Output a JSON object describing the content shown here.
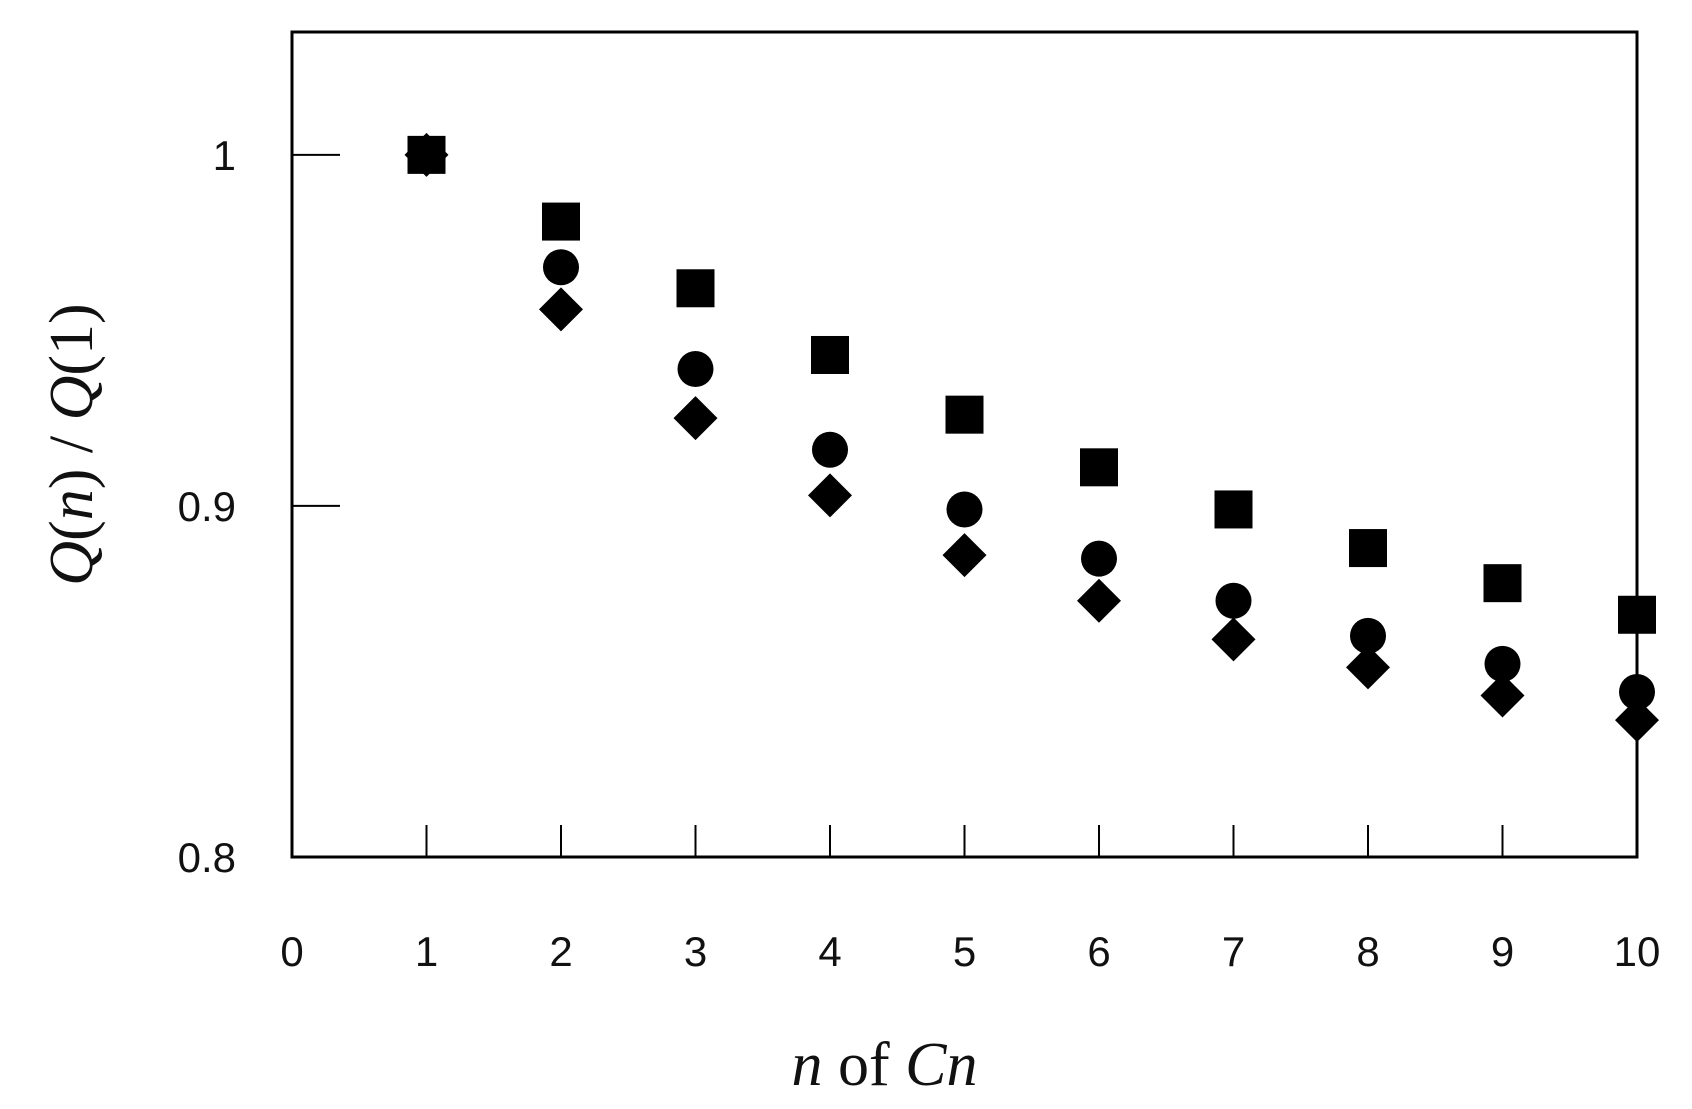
{
  "chart_data": {
    "type": "scatter",
    "x_axis": {
      "label_parts": [
        {
          "text": "n",
          "italic": true
        },
        {
          "text": " of ",
          "italic": false
        },
        {
          "text": "Cn",
          "italic": true
        }
      ],
      "range": [
        0,
        10
      ],
      "ticks": [
        0,
        1,
        2,
        3,
        4,
        5,
        6,
        7,
        8,
        9,
        10
      ],
      "tick_labels": [
        "0",
        "1",
        "2",
        "3",
        "4",
        "5",
        "6",
        "7",
        "8",
        "9",
        "10"
      ]
    },
    "y_axis": {
      "label_parts": [
        {
          "text": "Q",
          "italic": true
        },
        {
          "text": "(",
          "italic": false
        },
        {
          "text": "n",
          "italic": true
        },
        {
          "text": ") / ",
          "italic": false
        },
        {
          "text": "Q",
          "italic": true
        },
        {
          "text": "(1)",
          "italic": false
        }
      ],
      "range": [
        0.8,
        1.035
      ],
      "ticks": [
        0.8,
        0.9,
        1.0
      ],
      "tick_labels": [
        "0.8",
        "0.9",
        "1"
      ]
    },
    "grid": false,
    "legend": "none",
    "series": [
      {
        "marker": "square",
        "color": "#000000",
        "x": [
          1,
          2,
          3,
          4,
          5,
          6,
          7,
          8,
          9,
          10
        ],
        "y": [
          1.0,
          0.981,
          0.962,
          0.943,
          0.926,
          0.911,
          0.899,
          0.888,
          0.878,
          0.869
        ]
      },
      {
        "marker": "circle",
        "color": "#000000",
        "x": [
          1,
          2,
          3,
          4,
          5,
          6,
          7,
          8,
          9,
          10
        ],
        "y": [
          1.0,
          0.968,
          0.939,
          0.916,
          0.899,
          0.885,
          0.873,
          0.863,
          0.855,
          0.847
        ]
      },
      {
        "marker": "diamond",
        "color": "#000000",
        "x": [
          1,
          2,
          3,
          4,
          5,
          6,
          7,
          8,
          9,
          10
        ],
        "y": [
          1.0,
          0.956,
          0.925,
          0.903,
          0.886,
          0.873,
          0.862,
          0.854,
          0.846,
          0.839
        ]
      }
    ]
  }
}
